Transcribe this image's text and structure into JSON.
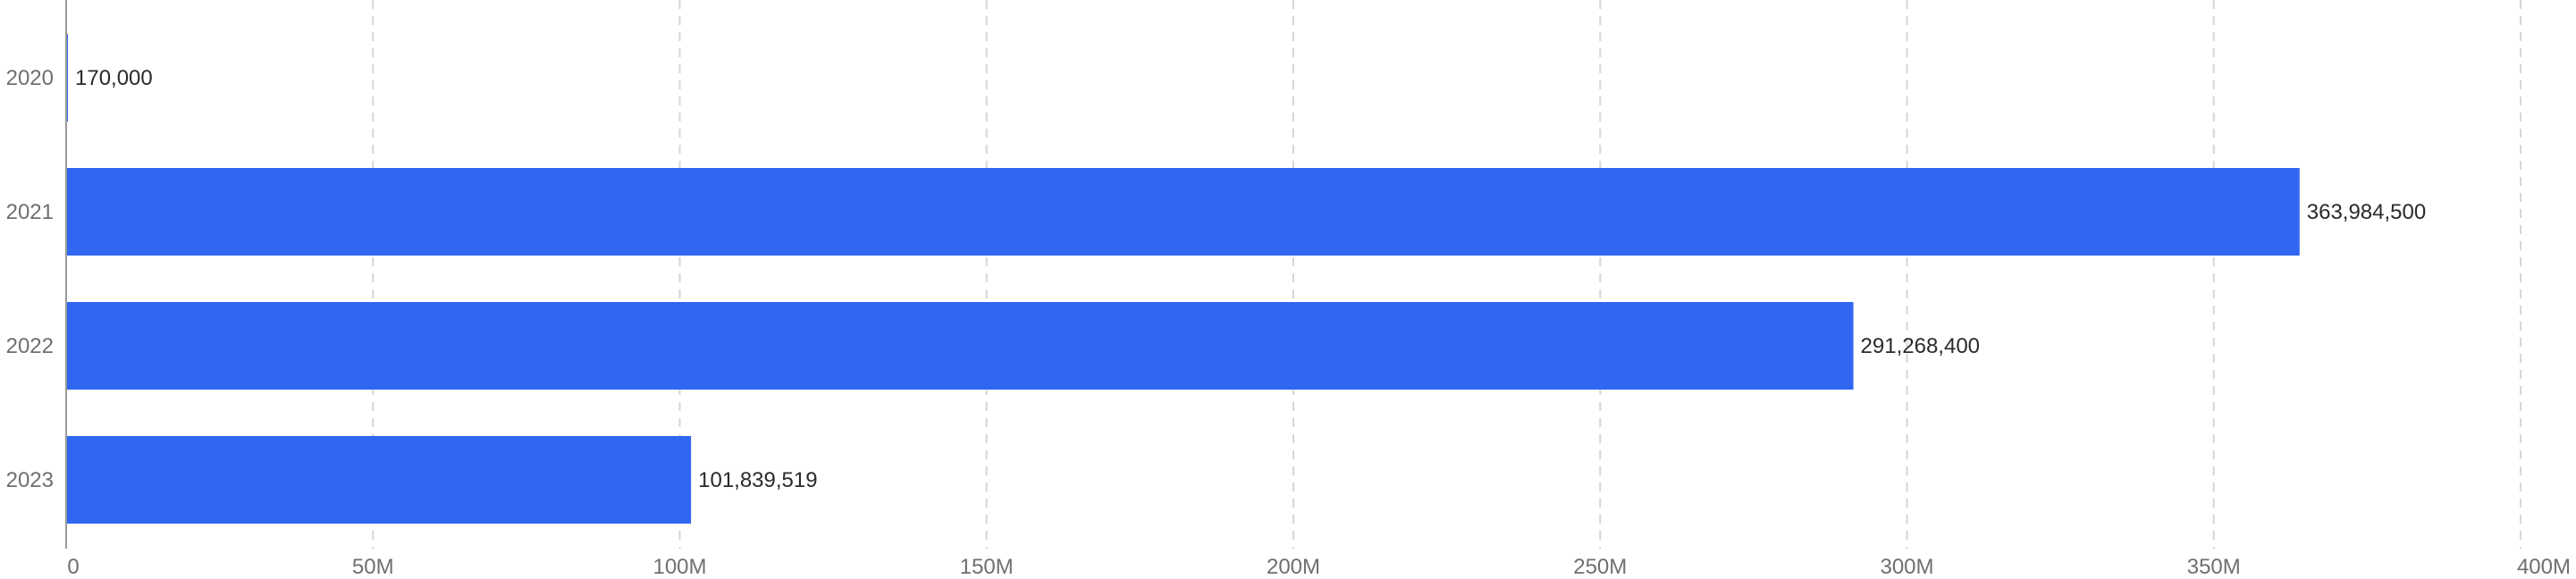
{
  "chart_data": {
    "type": "bar",
    "orientation": "horizontal",
    "title": "",
    "xlabel": "",
    "ylabel": "",
    "categories": [
      "2020",
      "2021",
      "2022",
      "2023"
    ],
    "values": [
      170000,
      363984500,
      291268400,
      101839519
    ],
    "value_labels": [
      "170,000",
      "363,984,500",
      "291,268,400",
      "101,839,519"
    ],
    "xlim": [
      0,
      400000000
    ],
    "x_ticks": [
      0,
      50000000,
      100000000,
      150000000,
      200000000,
      250000000,
      300000000,
      350000000,
      400000000
    ],
    "x_tick_labels": [
      "0",
      "50M",
      "100M",
      "150M",
      "200M",
      "250M",
      "300M",
      "350M",
      "400M"
    ],
    "grid": "vertical-dashed",
    "legend": "none",
    "bar_color": "#3066f0"
  }
}
